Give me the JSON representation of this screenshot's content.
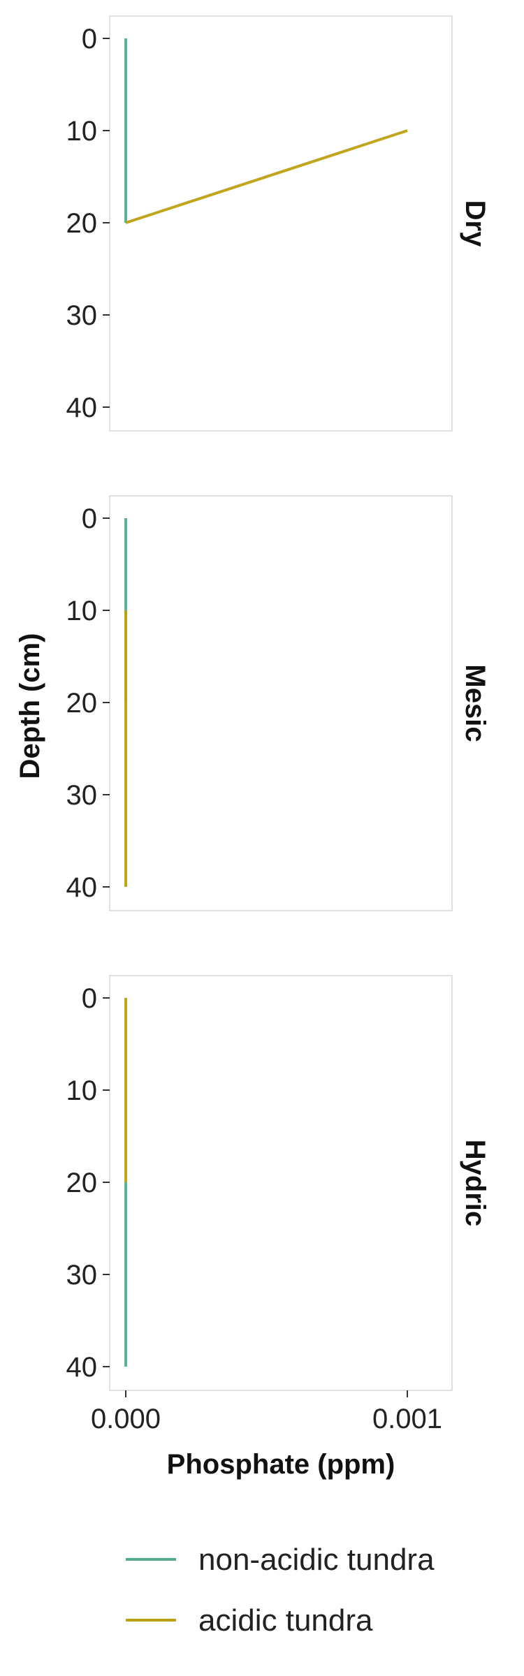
{
  "chart_data": {
    "type": "line",
    "xlabel": "Phosphate (ppm)",
    "ylabel": "Depth (cm)",
    "xlim": [
      0,
      0.00115
    ],
    "ylim": [
      42,
      -2
    ],
    "x_ticks": [
      0,
      0.001
    ],
    "x_tick_labels": [
      "0.000",
      "0.001"
    ],
    "y_ticks": [
      0,
      10,
      20,
      30,
      40
    ],
    "y_tick_labels": [
      "0",
      "10",
      "20",
      "30",
      "40"
    ],
    "grid": false,
    "legend_position": "bottom",
    "series_styles": [
      {
        "name": "non-acidic tundra",
        "color": "#55ad91"
      },
      {
        "name": "acidic tundra",
        "color": "#bea111"
      }
    ],
    "panels": [
      {
        "label": "Dry",
        "series": [
          {
            "name": "non-acidic tundra",
            "points": [
              [
                0,
                0
              ],
              [
                0,
                10
              ],
              [
                0,
                20
              ]
            ]
          },
          {
            "name": "acidic tundra",
            "points": [
              [
                0.001,
                10
              ],
              [
                0,
                20
              ]
            ]
          }
        ]
      },
      {
        "label": "Mesic",
        "series": [
          {
            "name": "non-acidic tundra",
            "points": [
              [
                0,
                0
              ],
              [
                0,
                10
              ],
              [
                0,
                20
              ]
            ]
          },
          {
            "name": "acidic tundra",
            "points": [
              [
                0,
                10
              ],
              [
                0,
                20
              ],
              [
                0,
                40
              ]
            ]
          }
        ]
      },
      {
        "label": "Hydric",
        "series": [
          {
            "name": "non-acidic tundra",
            "points": [
              [
                0,
                20
              ],
              [
                0,
                40
              ]
            ]
          },
          {
            "name": "acidic tundra",
            "points": [
              [
                0,
                0
              ],
              [
                0,
                10
              ],
              [
                0,
                20
              ]
            ]
          }
        ]
      }
    ]
  }
}
